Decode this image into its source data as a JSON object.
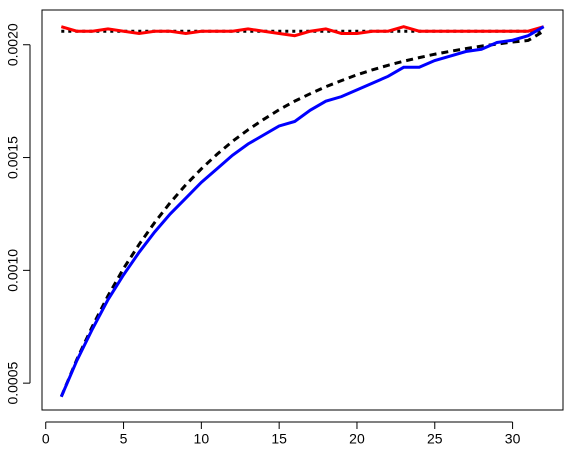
{
  "chart_data": {
    "type": "line",
    "x": [
      1,
      2,
      3,
      4,
      5,
      6,
      7,
      8,
      9,
      10,
      11,
      12,
      13,
      14,
      15,
      16,
      17,
      18,
      19,
      20,
      21,
      22,
      23,
      24,
      25,
      26,
      27,
      28,
      29,
      30,
      31,
      32
    ],
    "xlim": [
      -0.24,
      33.24
    ],
    "xticks": [
      0,
      5,
      10,
      15,
      20,
      25,
      30
    ],
    "ylim": [
      0.000381,
      0.002154
    ],
    "yticks": [
      {
        "value": 0.0005,
        "label": "0.0005"
      },
      {
        "value": 0.001,
        "label": "0.0010"
      },
      {
        "value": 0.0015,
        "label": "0.0015"
      },
      {
        "value": 0.002,
        "label": "0.0020"
      }
    ],
    "series": [
      {
        "color": "#000000",
        "style": "dotted",
        "values": [
          0.00206,
          0.00206,
          0.00206,
          0.00206,
          0.00206,
          0.00206,
          0.00206,
          0.00206,
          0.00206,
          0.00206,
          0.00206,
          0.00206,
          0.00206,
          0.00206,
          0.00206,
          0.00206,
          0.00206,
          0.00206,
          0.00206,
          0.00206,
          0.00206,
          0.00206,
          0.00206,
          0.00206,
          0.00206,
          0.00206,
          0.00206,
          0.00206,
          0.00206,
          0.00206,
          0.00206,
          0.00206
        ]
      },
      {
        "color": "#ff0000",
        "style": "solid",
        "values": [
          0.00208,
          0.00206,
          0.00206,
          0.00207,
          0.00206,
          0.00205,
          0.00206,
          0.00206,
          0.00205,
          0.00206,
          0.00206,
          0.00206,
          0.00207,
          0.00206,
          0.00205,
          0.00204,
          0.00206,
          0.00207,
          0.00205,
          0.00205,
          0.00206,
          0.00206,
          0.00208,
          0.00206,
          0.00206,
          0.00206,
          0.00206,
          0.00206,
          0.00206,
          0.00206,
          0.00206,
          0.00208
        ]
      },
      {
        "color": "#000000",
        "style": "dashed",
        "values": [
          0.00044,
          0.000605,
          0.000752,
          0.000887,
          0.001008,
          0.001115,
          0.001212,
          0.0013,
          0.001379,
          0.00145,
          0.001514,
          0.001572,
          0.001623,
          0.001669,
          0.001712,
          0.00175,
          0.001783,
          0.001814,
          0.001841,
          0.001867,
          0.001889,
          0.001909,
          0.001927,
          0.001943,
          0.001958,
          0.001971,
          0.001983,
          0.001994,
          0.002003,
          0.002012,
          0.002019,
          0.00206
        ]
      },
      {
        "color": "#0000ff",
        "style": "solid",
        "values": [
          0.00044,
          0.0006,
          0.00074,
          0.00087,
          0.00098,
          0.00108,
          0.00117,
          0.00125,
          0.00132,
          0.00139,
          0.00145,
          0.00151,
          0.00156,
          0.0016,
          0.00164,
          0.00166,
          0.00171,
          0.00175,
          0.00177,
          0.0018,
          0.00183,
          0.00186,
          0.0019,
          0.0019,
          0.00193,
          0.00195,
          0.00197,
          0.00198,
          0.00201,
          0.00202,
          0.00204,
          0.00208
        ]
      }
    ]
  }
}
